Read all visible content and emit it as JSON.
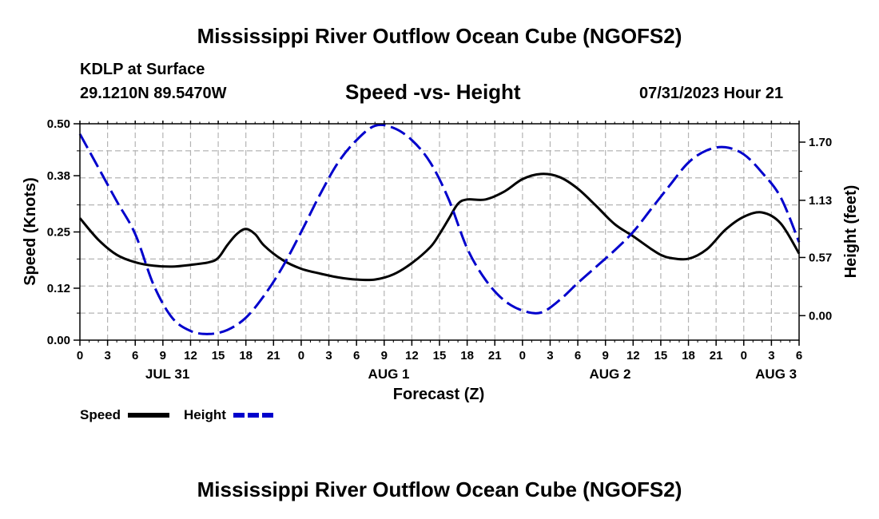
{
  "header": {
    "title": "Mississippi River Outflow Ocean Cube (NGOFS2)",
    "station": "KDLP at Surface",
    "coords": "29.1210N  89.5470W",
    "subtitle": "Speed -vs- Height",
    "timestamp": "07/31/2023 Hour 21"
  },
  "footer": {
    "title": "Mississippi River Outflow Ocean Cube (NGOFS2)"
  },
  "chart_data": {
    "type": "line",
    "title": "Speed -vs- Height",
    "xlabel": "Forecast (Z)",
    "ylabel": "Speed (Knots)",
    "y2label": "Height (feet)",
    "xlim": [
      0,
      78
    ],
    "ylim": [
      0,
      0.5
    ],
    "y2lim": [
      -0.24,
      1.88
    ],
    "grid": true,
    "x_tick_labels": [
      "0",
      "3",
      "6",
      "9",
      "12",
      "15",
      "18",
      "21",
      "0",
      "3",
      "6",
      "9",
      "12",
      "15",
      "18",
      "21",
      "0",
      "3",
      "6",
      "9",
      "12",
      "15",
      "18",
      "21",
      "0",
      "3",
      "6"
    ],
    "y_ticks": [
      0.0,
      0.12,
      0.25,
      0.38,
      0.5
    ],
    "y_tick_labels": [
      "0.00",
      "0.12",
      "0.25",
      "0.38",
      "0.50"
    ],
    "y2_ticks": [
      0.0,
      0.57,
      1.13,
      1.7
    ],
    "y2_tick_labels": [
      "0.00",
      "0.57",
      "1.13",
      "1.70"
    ],
    "date_labels": [
      {
        "label": "JUL 31",
        "hour": 9.5
      },
      {
        "label": "AUG 1",
        "hour": 33.5
      },
      {
        "label": "AUG 2",
        "hour": 57.5
      },
      {
        "label": "AUG 3",
        "hour": 75.5
      }
    ],
    "series": [
      {
        "name": "Speed",
        "axis": "left",
        "color": "#000000",
        "dash": "solid",
        "x": [
          0,
          2,
          4,
          6,
          8,
          10,
          12,
          14,
          15,
          16,
          17,
          18,
          19,
          20,
          22,
          24,
          26,
          28,
          30,
          32,
          34,
          36,
          38,
          39,
          40,
          41,
          42,
          44,
          46,
          48,
          50,
          52,
          54,
          56,
          58,
          60,
          62,
          63,
          64,
          66,
          68,
          70,
          72,
          74,
          76,
          78
        ],
        "values": [
          0.282,
          0.232,
          0.197,
          0.18,
          0.172,
          0.17,
          0.174,
          0.18,
          0.19,
          0.22,
          0.245,
          0.257,
          0.245,
          0.218,
          0.185,
          0.165,
          0.154,
          0.145,
          0.14,
          0.14,
          0.152,
          0.178,
          0.215,
          0.245,
          0.28,
          0.315,
          0.325,
          0.325,
          0.343,
          0.372,
          0.384,
          0.377,
          0.35,
          0.31,
          0.268,
          0.24,
          0.21,
          0.197,
          0.19,
          0.188,
          0.21,
          0.255,
          0.285,
          0.295,
          0.27,
          0.2
        ]
      },
      {
        "name": "Height",
        "axis": "right",
        "color": "#0000cc",
        "dash": "dashed",
        "x": [
          0,
          2,
          4,
          6,
          8,
          10,
          12,
          14,
          16,
          18,
          20,
          22,
          24,
          26,
          28,
          30,
          32,
          34,
          36,
          38,
          40,
          42,
          44,
          46,
          48,
          50,
          52,
          54,
          56,
          58,
          60,
          62,
          64,
          66,
          68,
          70,
          72,
          74,
          76,
          78
        ],
        "values": [
          1.78,
          1.45,
          1.12,
          0.8,
          0.3,
          -0.02,
          -0.15,
          -0.18,
          -0.14,
          -0.02,
          0.2,
          0.48,
          0.82,
          1.18,
          1.5,
          1.72,
          1.86,
          1.84,
          1.72,
          1.5,
          1.14,
          0.66,
          0.35,
          0.15,
          0.05,
          0.03,
          0.15,
          0.32,
          0.48,
          0.64,
          0.82,
          1.05,
          1.28,
          1.5,
          1.62,
          1.65,
          1.58,
          1.4,
          1.16,
          0.72
        ]
      }
    ],
    "legend": [
      {
        "label": "Speed",
        "color": "#000000",
        "dash": "solid"
      },
      {
        "label": "Height",
        "color": "#0000cc",
        "dash": "dashed"
      }
    ],
    "legend_position": "bottom-left"
  }
}
